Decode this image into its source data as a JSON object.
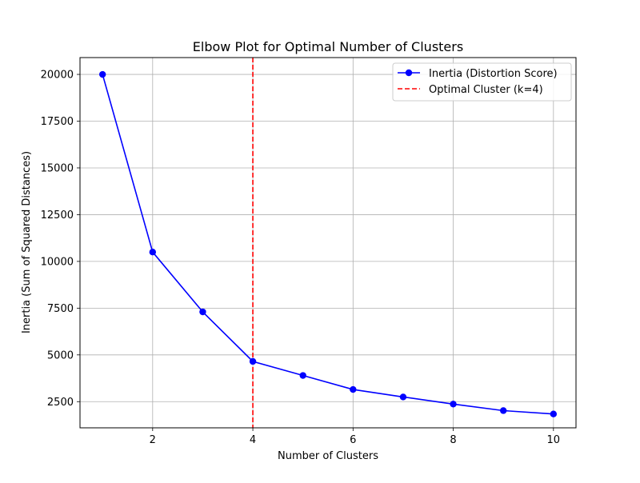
{
  "chart_data": {
    "type": "line",
    "title": "Elbow Plot for Optimal Number of Clusters",
    "xlabel": "Number of Clusters",
    "ylabel": "Inertia (Sum of Squared Distances)",
    "xlim": [
      0.55,
      10.45
    ],
    "ylim": [
      1100,
      20900
    ],
    "grid": true,
    "legend_position": "top-right",
    "x": [
      1,
      2,
      3,
      4,
      5,
      6,
      7,
      8,
      9,
      10
    ],
    "series": [
      {
        "name": "Inertia (Distortion Score)",
        "color": "#0000ff",
        "marker": "circle",
        "values": [
          20000,
          10500,
          7300,
          4650,
          3900,
          3150,
          2750,
          2370,
          2020,
          1840
        ]
      }
    ],
    "vlines": [
      {
        "name": "Optimal Cluster (k=4)",
        "x": 4,
        "color": "#ff0000",
        "style": "dashed"
      }
    ],
    "x_ticks": [
      2,
      4,
      6,
      8,
      10
    ],
    "y_ticks": [
      2500,
      5000,
      7500,
      10000,
      12500,
      15000,
      17500,
      20000
    ]
  }
}
